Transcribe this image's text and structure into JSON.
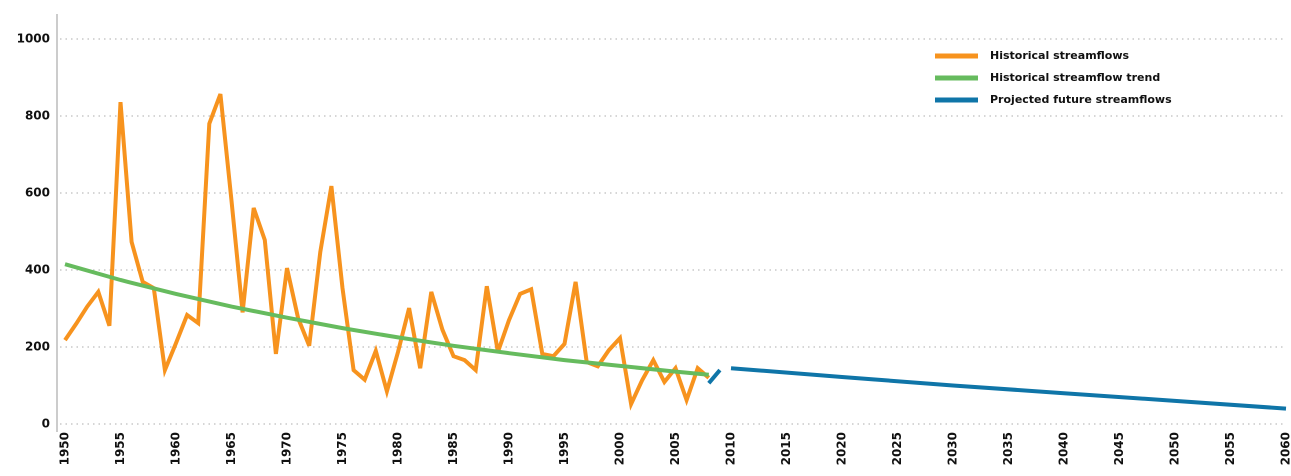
{
  "chart_data": {
    "type": "line",
    "xlim": [
      1950,
      2060
    ],
    "xticks": [
      1950,
      1955,
      1960,
      1965,
      1970,
      1975,
      1980,
      1985,
      1990,
      1995,
      2000,
      2005,
      2010,
      2015,
      2020,
      2025,
      2030,
      2035,
      2040,
      2045,
      2050,
      2055,
      2060
    ],
    "ylim": [
      0,
      1000
    ],
    "yticks": [
      0,
      200,
      400,
      600,
      800,
      1000
    ],
    "grid": true,
    "legend": "upper right",
    "series": [
      {
        "name": "Historical streamflows",
        "color": "#f7931e",
        "x": [
          1950,
          1951,
          1952,
          1953,
          1954,
          1955,
          1956,
          1957,
          1958,
          1959,
          1960,
          1961,
          1962,
          1963,
          1964,
          1965,
          1966,
          1967,
          1968,
          1969,
          1970,
          1971,
          1972,
          1973,
          1974,
          1975,
          1976,
          1977,
          1978,
          1979,
          1980,
          1981,
          1982,
          1983,
          1984,
          1985,
          1986,
          1987,
          1988,
          1989,
          1990,
          1991,
          1992,
          1993,
          1994,
          1995,
          1996,
          1997,
          1998,
          1999,
          2000,
          2001,
          2002,
          2003,
          2004,
          2005,
          2006,
          2007,
          2008
        ],
        "values": [
          218,
          260,
          305,
          343,
          255,
          836,
          473,
          369,
          353,
          140,
          210,
          283,
          262,
          780,
          857,
          580,
          290,
          561,
          478,
          182,
          405,
          275,
          203,
          447,
          618,
          353,
          140,
          115,
          190,
          85,
          187,
          301,
          145,
          343,
          245,
          176,
          166,
          140,
          358,
          187,
          270,
          338,
          350,
          182,
          176,
          208,
          369,
          161,
          150,
          192,
          223,
          52,
          114,
          166,
          109,
          145,
          62,
          145,
          120
        ]
      },
      {
        "name": "Historical streamflow trend",
        "color": "#66bb5e",
        "x": [
          1950,
          1955,
          1960,
          1965,
          1970,
          1975,
          1980,
          1985,
          1990,
          1995,
          2000,
          2005,
          2008
        ],
        "values": [
          415,
          374,
          338,
          305,
          276,
          249,
          225,
          203,
          184,
          166,
          151,
          136,
          128
        ]
      },
      {
        "name": "Projected future streamflows",
        "color": "#0f75a8",
        "x": [
          2008,
          2009,
          2009.5,
          2010,
          2020,
          2030,
          2040,
          2050,
          2060
        ],
        "values": [
          106,
          140,
          null,
          145,
          122,
          100,
          80,
          60,
          40
        ]
      }
    ]
  }
}
